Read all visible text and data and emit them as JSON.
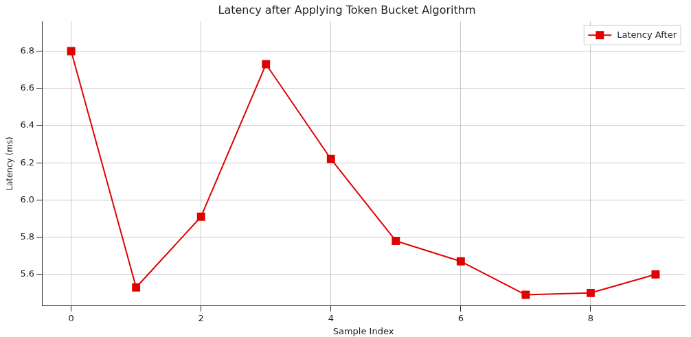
{
  "chart_data": {
    "type": "line",
    "title": "Latency after Applying Token Bucket Algorithm",
    "xlabel": "Sample Index",
    "ylabel": "Latency (ms)",
    "x": [
      0,
      1,
      2,
      3,
      4,
      5,
      6,
      7,
      8,
      9
    ],
    "series": [
      {
        "name": "Latency After",
        "color": "#e00000",
        "values": [
          6.8,
          5.53,
          5.91,
          6.73,
          6.22,
          5.78,
          5.67,
          5.49,
          5.5,
          5.6
        ]
      }
    ],
    "xlim": [
      -0.45,
      9.45
    ],
    "xticks": [
      0,
      2,
      4,
      6,
      8
    ],
    "ylim": [
      5.43,
      6.96
    ],
    "yticks": [
      5.6,
      5.8,
      {
        "value": 6,
        "label": "6.0"
      },
      6.2,
      6.4,
      6.6,
      6.8
    ],
    "grid": true,
    "legend": "top right",
    "marker": "square",
    "line_style": "solid"
  }
}
